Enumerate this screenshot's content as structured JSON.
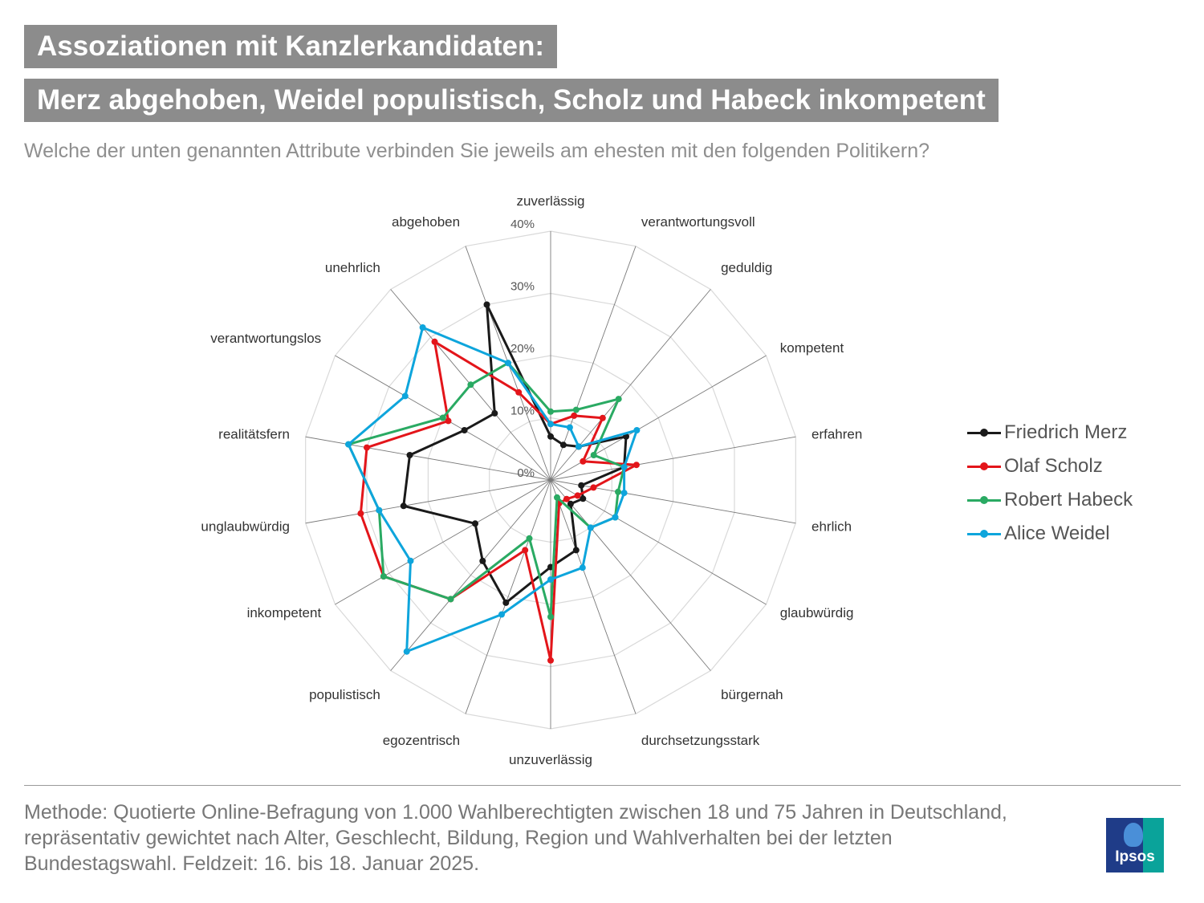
{
  "header": {
    "title_line1": "Assoziationen mit Kanzlerkandidaten:",
    "title_line2": "Merz abgehoben, Weidel populistisch, Scholz und Habeck inkompetent",
    "question": "Welche der unten genannten Attribute verbinden Sie jeweils am ehesten mit den folgenden Politikern?"
  },
  "chart_data": {
    "type": "radar",
    "categories": [
      "zuverlässig",
      "verantwortungsvoll",
      "geduldig",
      "kompetent",
      "erfahren",
      "ehrlich",
      "glaubwürdig",
      "bürgernah",
      "durchsetzungsstark",
      "unzuverlässig",
      "egozentrisch",
      "populistisch",
      "inkompetent",
      "unglaubwürdig",
      "realitätsfern",
      "verantwortungslos",
      "unehrlich",
      "abgehoben"
    ],
    "rlim": [
      0,
      40
    ],
    "ticks": [
      0,
      10,
      20,
      30,
      40
    ],
    "tick_labels": [
      "0%",
      "10%",
      "20%",
      "30%",
      "40%"
    ],
    "grid": true,
    "legend_position": "right",
    "series": [
      {
        "name": "Friedrich Merz",
        "color": "#1a1a1a",
        "values": [
          7,
          6,
          7,
          14,
          12,
          5,
          6,
          5,
          12,
          14,
          21,
          17,
          14,
          24,
          23,
          16,
          14,
          30
        ]
      },
      {
        "name": "Olaf Scholz",
        "color": "#e3151a",
        "values": [
          9,
          11,
          13,
          6,
          14,
          7,
          5,
          4,
          4,
          29,
          12,
          25,
          31,
          31,
          30,
          19,
          29,
          15
        ]
      },
      {
        "name": "Robert Habeck",
        "color": "#2aaa63",
        "values": [
          11,
          12,
          17,
          8,
          12,
          11,
          12,
          10,
          3,
          22,
          10,
          25,
          31,
          28,
          33,
          20,
          20,
          20
        ]
      },
      {
        "name": "Alice Weidel",
        "color": "#0ea5dc",
        "values": [
          9,
          9,
          7,
          16,
          12,
          12,
          12,
          10,
          15,
          16,
          23,
          36,
          26,
          28,
          33,
          27,
          32,
          20
        ]
      }
    ]
  },
  "footer": {
    "method": "Methode: Quotierte Online-Befragung von 1.000 Wahlberechtigten zwischen 18 und 75 Jahren in Deutschland, repräsentativ gewichtet nach Alter, Geschlecht, Bildung, Region und Wahlverhalten bei der letzten Bundestagswahl. Feldzeit: 16. bis 18. Januar 2025.",
    "logo_text": "Ipsos"
  }
}
